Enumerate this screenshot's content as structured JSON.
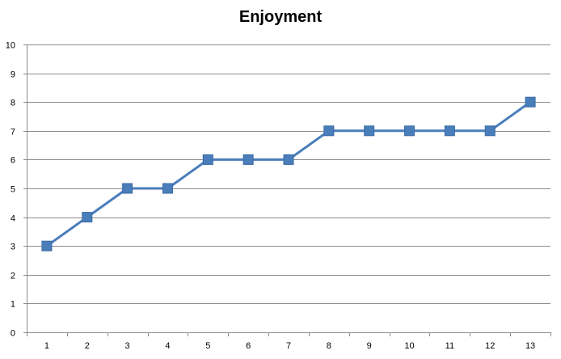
{
  "chart_data": {
    "type": "line",
    "title": "Enjoyment",
    "categories": [
      "1",
      "2",
      "3",
      "4",
      "5",
      "6",
      "7",
      "8",
      "9",
      "10",
      "11",
      "12",
      "13"
    ],
    "series": [
      {
        "values": [
          3,
          4,
          5,
          5,
          6,
          6,
          6,
          7,
          7,
          7,
          7,
          7,
          8
        ],
        "color": "#4a7ebb",
        "marker": "square"
      }
    ],
    "ylim": [
      0,
      10
    ],
    "yticks": [
      0,
      1,
      2,
      3,
      4,
      5,
      6,
      7,
      8,
      9,
      10
    ],
    "grid": true,
    "legend": "none"
  }
}
